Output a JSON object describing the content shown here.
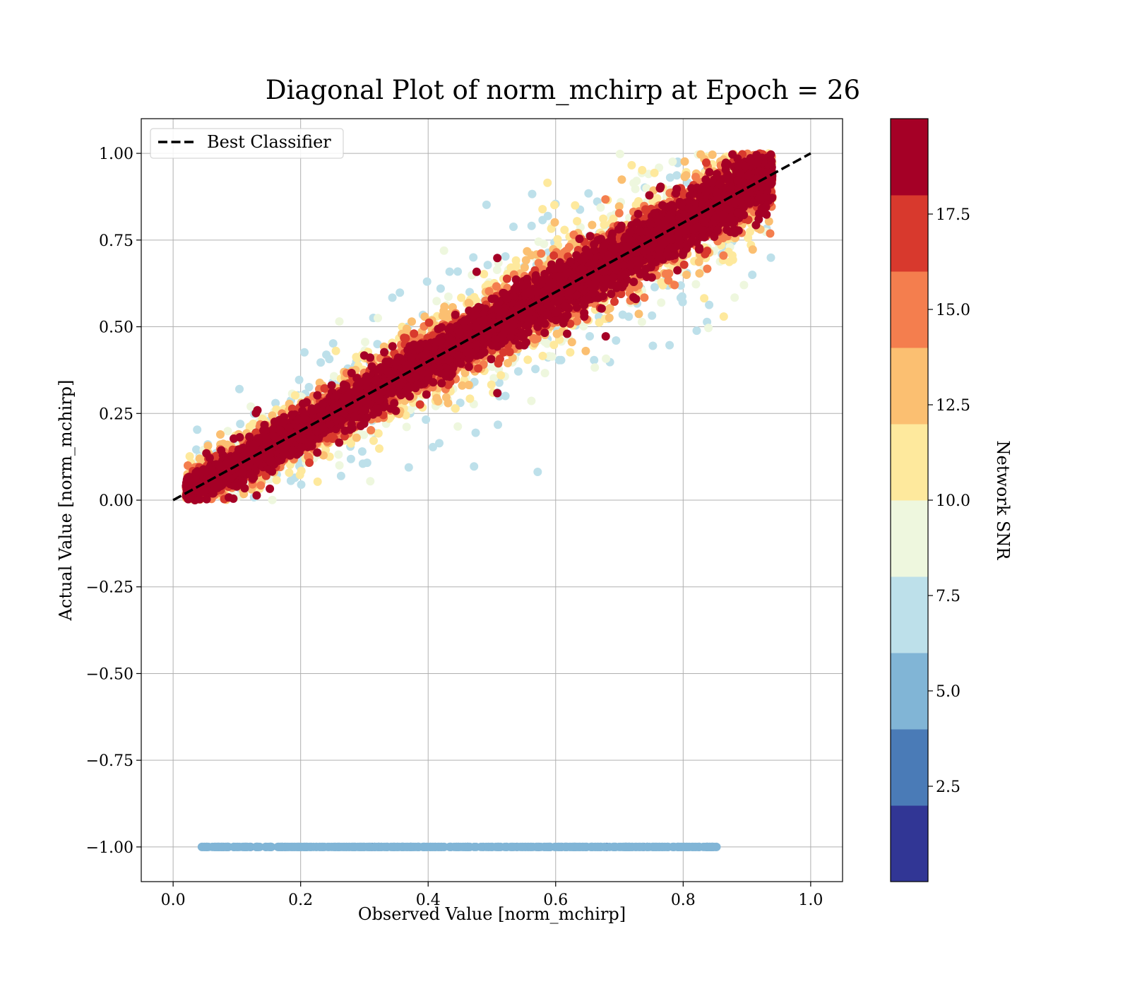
{
  "chart_data": {
    "type": "scatter",
    "title": "Diagonal Plot of norm_mchirp at Epoch = 26",
    "xlabel": "Observed Value [norm_mchirp]",
    "ylabel": "Actual Value [norm_mchirp]",
    "xlim": [
      -0.05,
      1.05
    ],
    "ylim": [
      -1.1,
      1.1
    ],
    "xticks": [
      0.0,
      0.2,
      0.4,
      0.6,
      0.8,
      1.0
    ],
    "xtick_labels": [
      "0.0",
      "0.2",
      "0.4",
      "0.6",
      "0.8",
      "1.0"
    ],
    "yticks": [
      1.0,
      0.75,
      0.5,
      0.25,
      0.0,
      -0.25,
      -0.5,
      -0.75,
      -1.0
    ],
    "ytick_labels": [
      "1.00",
      "0.75",
      "0.50",
      "0.25",
      "0.00",
      "−0.25",
      "−0.50",
      "−0.75",
      "−1.00"
    ],
    "grid": true,
    "legend": {
      "position": "top-left",
      "label": "Best Classifier"
    },
    "reference_line": {
      "name": "Best Classifier",
      "style": "dashed",
      "color": "#000000",
      "x": [
        0.0,
        1.0
      ],
      "y": [
        0.0,
        1.0
      ]
    },
    "color_metric": "Network SNR",
    "main_cloud": {
      "x_range": [
        0.02,
        0.94
      ],
      "y_range": [
        0.0,
        1.0
      ],
      "correlation": "y ≈ x, spread increases as SNR decreases"
    },
    "failed_band": {
      "y": -1.0,
      "x_range": [
        0.045,
        0.855
      ],
      "snr_bin": 5.0
    },
    "colorbar": {
      "label": "Network SNR",
      "range": [
        0.0,
        20.0
      ],
      "bins": 10,
      "ticks": [
        2.5,
        5.0,
        7.5,
        10.0,
        12.5,
        15.0,
        17.5
      ],
      "tick_labels": [
        "2.5",
        "5.0",
        "7.5",
        "10.0",
        "12.5",
        "15.0",
        "17.5"
      ],
      "colors": [
        "#313695",
        "#4a7bb7",
        "#81b5d6",
        "#bde0ea",
        "#eef7de",
        "#fee99d",
        "#fbbf71",
        "#f47e4e",
        "#d8392d",
        "#a50026"
      ]
    }
  }
}
